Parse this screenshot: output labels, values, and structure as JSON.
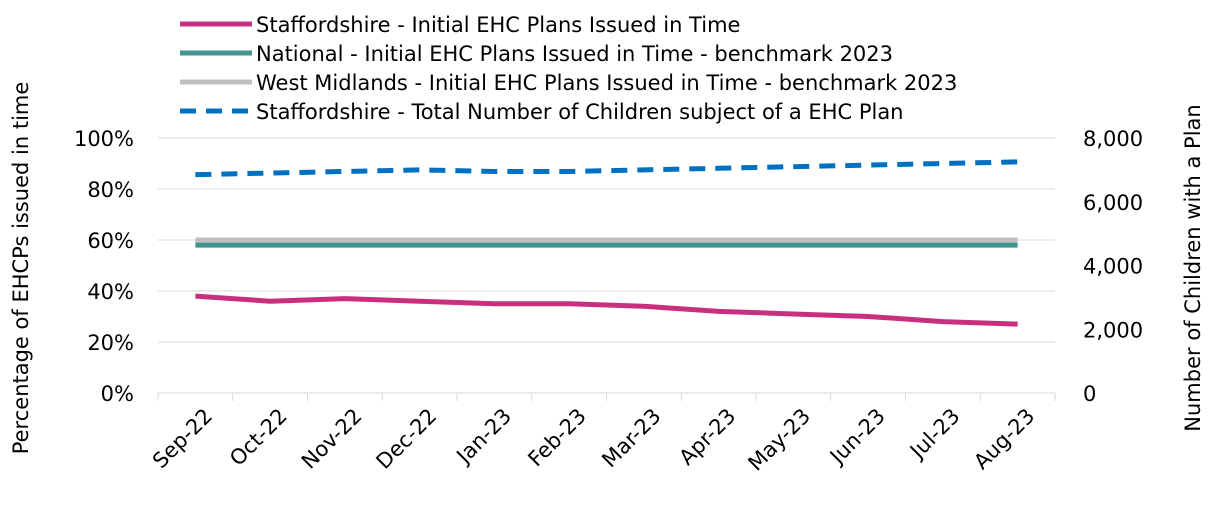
{
  "chart_data": {
    "type": "line",
    "categories": [
      "Sep-22",
      "Oct-22",
      "Nov-22",
      "Dec-22",
      "Jan-23",
      "Feb-23",
      "Mar-23",
      "Apr-23",
      "May-23",
      "Jun-23",
      "Jul-23",
      "Aug-23"
    ],
    "y_label": "Percentage of EHCPs issued in time",
    "y2_label": "Number of Children with a Plan",
    "ylim": [
      0,
      100
    ],
    "yticks": [
      {
        "value": 0,
        "label": "0%"
      },
      {
        "value": 20,
        "label": "20%"
      },
      {
        "value": 40,
        "label": "40%"
      },
      {
        "value": 60,
        "label": "60%"
      },
      {
        "value": 80,
        "label": "80%"
      },
      {
        "value": 100,
        "label": "100%"
      }
    ],
    "y2lim": [
      0,
      8000
    ],
    "y2ticks": [
      0,
      {
        "value": 2000,
        "label": "2,000"
      },
      {
        "value": 4000,
        "label": "4,000"
      },
      {
        "value": 6000,
        "label": "6,000"
      },
      {
        "value": 8000,
        "label": "8,000"
      }
    ],
    "grid": true,
    "legend": "top",
    "series": [
      {
        "name": "Staffordshire - Initial EHC Plans Issued in Time",
        "color": "#c8307f",
        "values": [
          38,
          36,
          37,
          36,
          35,
          35,
          34,
          32,
          31,
          30,
          28,
          27
        ]
      },
      {
        "name": "National - Initial EHC Plans Issued in Time - benchmark 2023",
        "color": "#3f9590",
        "values": [
          58,
          58,
          58,
          58,
          58,
          58,
          58,
          58,
          58,
          58,
          58,
          58
        ]
      },
      {
        "name": "West Midlands - Initial EHC Plans Issued in Time - benchmark 2023",
        "color": "#bfbfbf",
        "values": [
          60,
          60,
          60,
          60,
          60,
          60,
          60,
          60,
          60,
          60,
          60,
          60
        ]
      },
      {
        "name": "Staffordshire - Total Number of Children subject of a EHC Plan",
        "color": "#0070c0",
        "dashed": true,
        "axis": "y2",
        "values": [
          6850,
          6900,
          6950,
          7000,
          6950,
          6950,
          7000,
          7050,
          7100,
          7150,
          7200,
          7250
        ]
      }
    ]
  }
}
